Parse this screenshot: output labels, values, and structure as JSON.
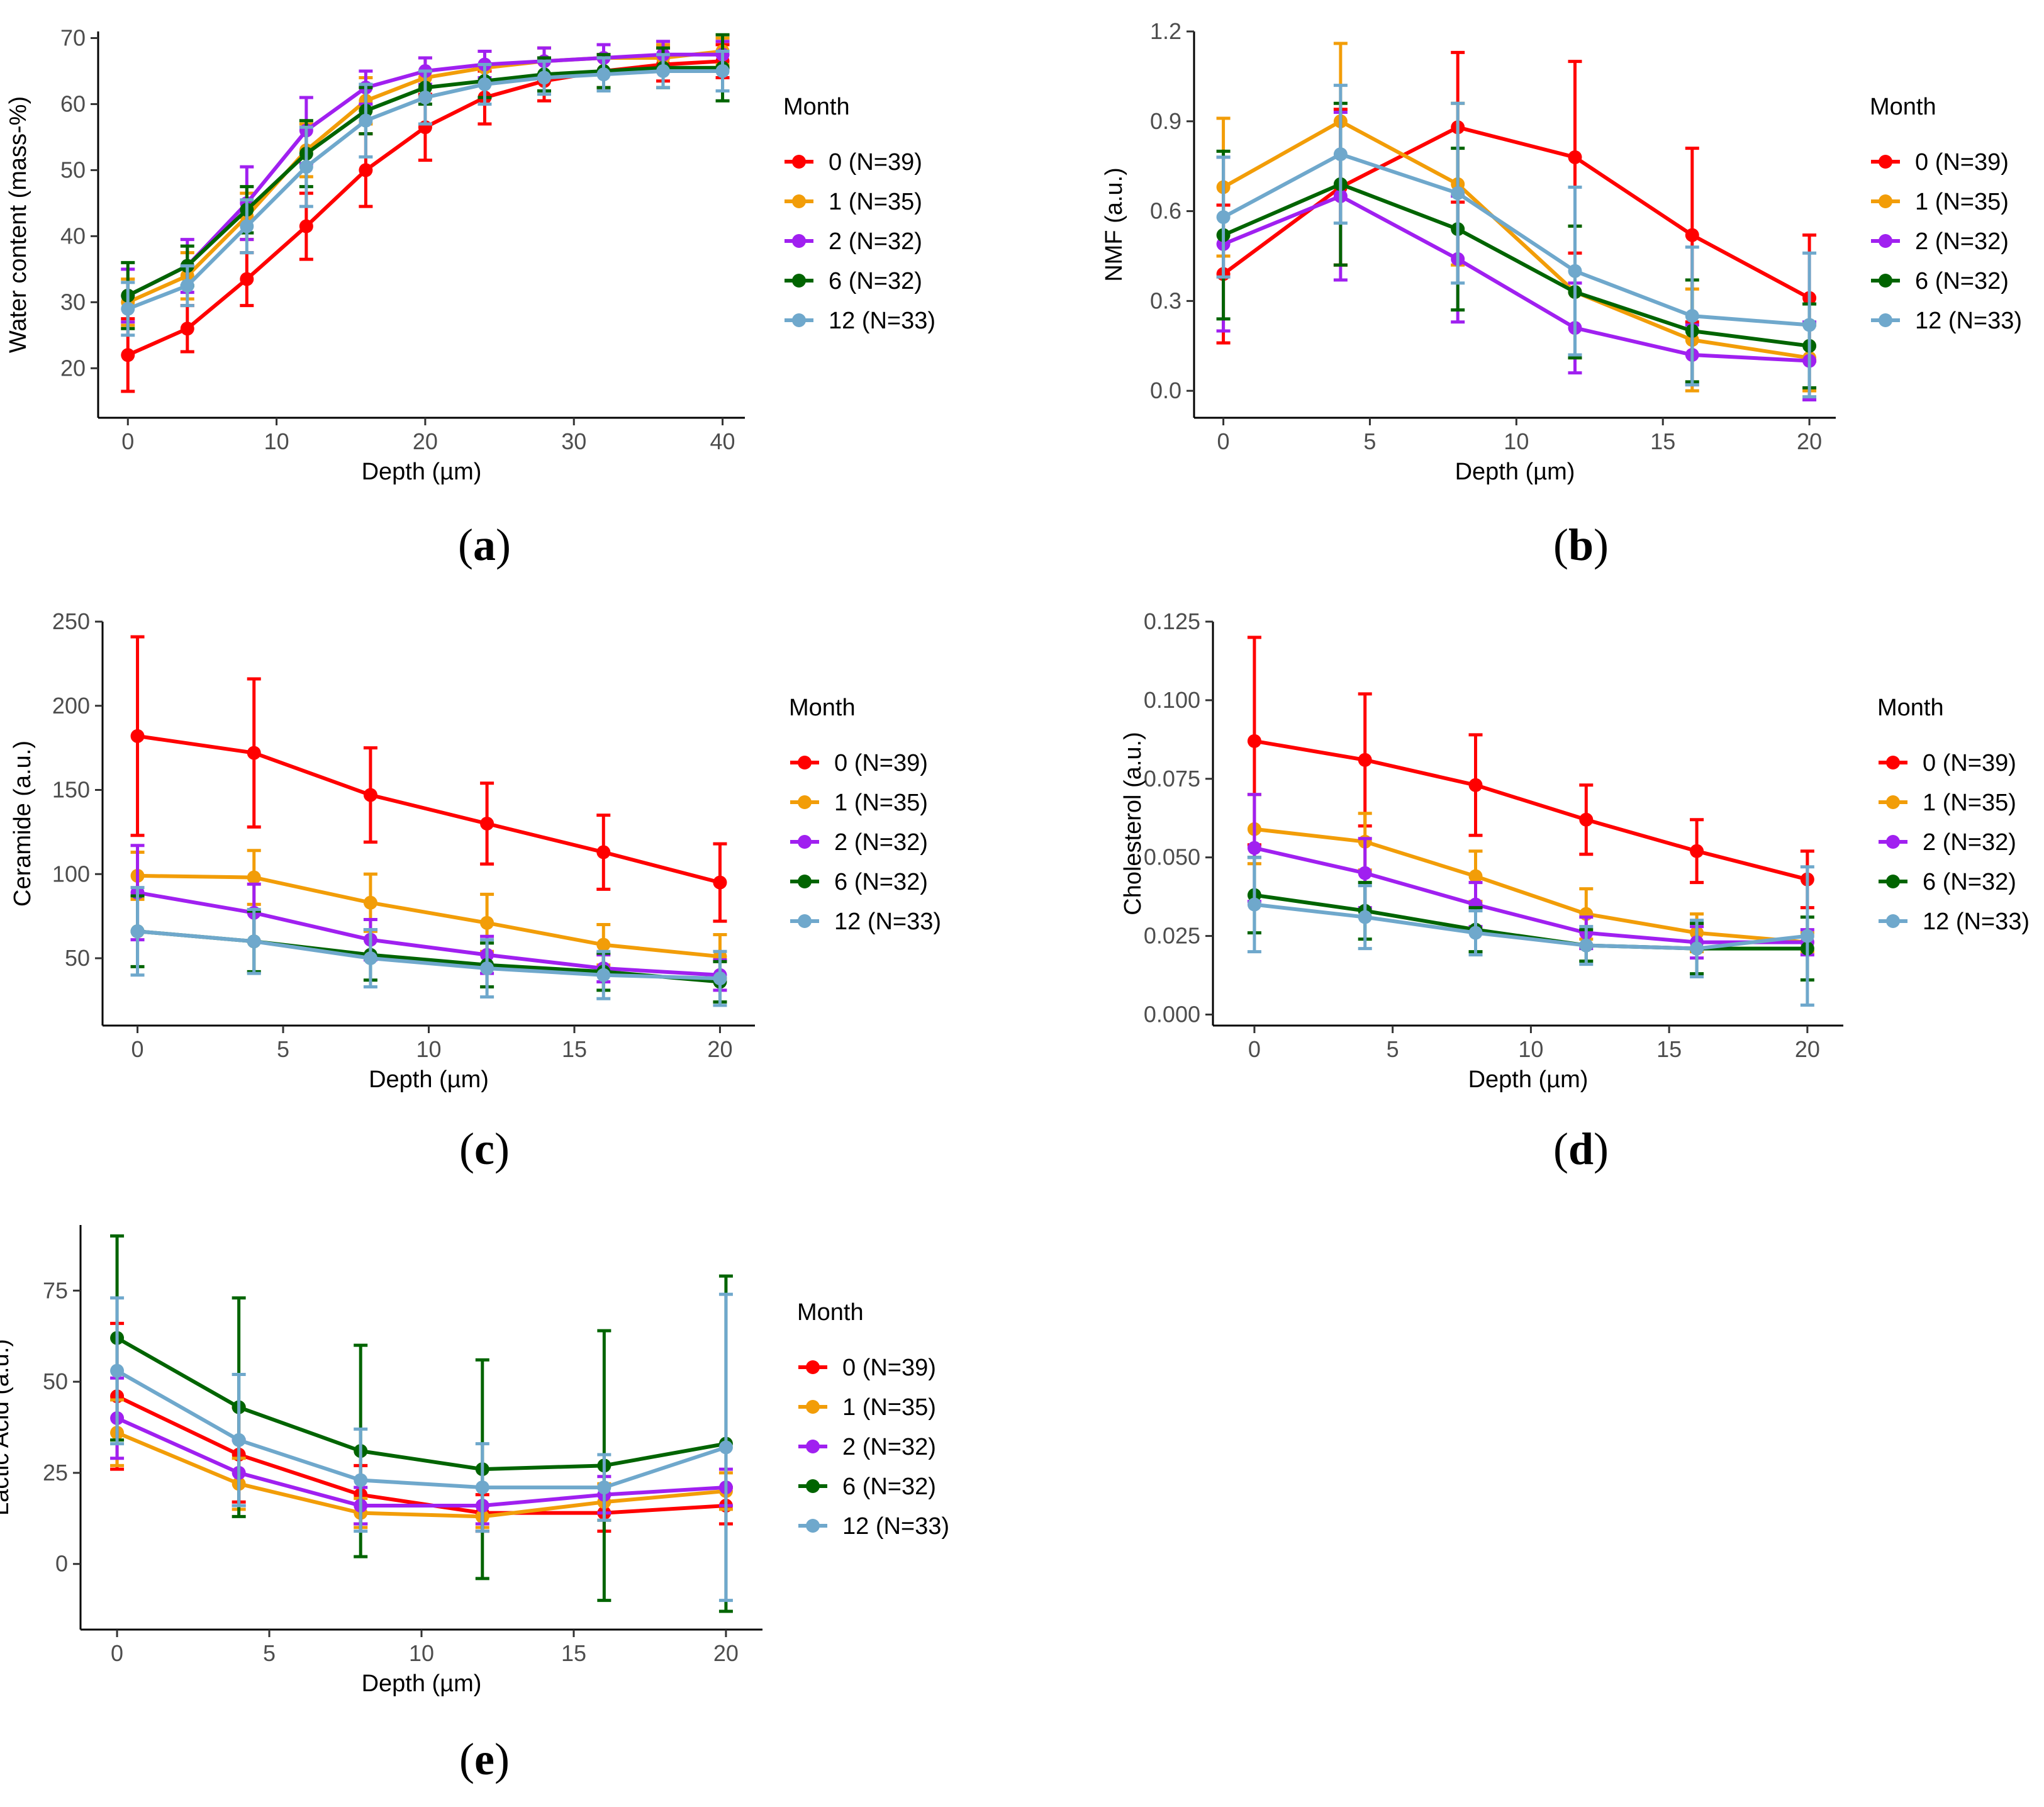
{
  "legend": {
    "title": "Month",
    "series": [
      {
        "name": "0 (N=39)",
        "color": "#ff0000"
      },
      {
        "name": "1 (N=35)",
        "color": "#f29d08"
      },
      {
        "name": "2 (N=32)",
        "color": "#a020f0"
      },
      {
        "name": "6 (N=32)",
        "color": "#006400"
      },
      {
        "name": "12 (N=33)",
        "color": "#6fa8cc"
      }
    ]
  },
  "chart_data": [
    {
      "type": "line",
      "panel_label": "a",
      "xlabel": "Depth (µm)",
      "ylabel": "Water content (mass-%)",
      "xlim": [
        -2,
        41.5
      ],
      "ylim": [
        12.5,
        71
      ],
      "xticks": [
        0,
        10,
        20,
        30,
        40
      ],
      "yticks": [
        20,
        30,
        40,
        50,
        60,
        70
      ],
      "x": [
        0,
        4,
        8,
        12,
        16,
        20,
        24,
        28,
        32,
        36,
        40
      ],
      "series": [
        {
          "name": "0 (N=39)",
          "values": [
            22,
            26,
            33.5,
            41.5,
            50,
            56.5,
            61,
            63.5,
            65,
            66,
            66.5
          ],
          "errors": [
            5.5,
            3.5,
            4,
            5,
            5.5,
            5,
            4,
            3,
            2.5,
            2.5,
            2.5
          ]
        },
        {
          "name": "1 (N=35)",
          "values": [
            30,
            34,
            43,
            53,
            60.5,
            64,
            65.5,
            66.5,
            67,
            67,
            68
          ],
          "errors": [
            3.5,
            3.5,
            3.5,
            4,
            3.5,
            3,
            2.5,
            2,
            2,
            2,
            2
          ]
        },
        {
          "name": "2 (N=32)",
          "values": [
            31,
            35.5,
            45,
            56,
            62.5,
            65,
            66,
            66.5,
            67,
            67.5,
            67.5
          ],
          "errors": [
            4,
            4,
            5.5,
            5,
            2.5,
            2,
            2,
            2,
            2,
            2,
            2
          ]
        },
        {
          "name": "6 (N=32)",
          "values": [
            31,
            35.5,
            44,
            52.5,
            59,
            62.5,
            63.5,
            64.5,
            65,
            65.5,
            65.5
          ],
          "errors": [
            5,
            3,
            3.5,
            5,
            3.5,
            2.5,
            2.5,
            2.5,
            2.5,
            3,
            5
          ]
        },
        {
          "name": "12 (N=33)",
          "values": [
            29,
            32.5,
            41.5,
            50.5,
            57.5,
            61,
            63,
            64,
            64.5,
            65,
            65
          ],
          "errors": [
            4,
            3,
            4,
            6,
            5.5,
            4,
            3,
            2.5,
            2.5,
            2.5,
            3
          ]
        }
      ]
    },
    {
      "type": "line",
      "panel_label": "b",
      "xlabel": "Depth (µm)",
      "ylabel": "NMF (a.u.)",
      "xlim": [
        -1,
        20.9
      ],
      "ylim": [
        -0.09,
        1.2
      ],
      "xticks": [
        0,
        5,
        10,
        15,
        20
      ],
      "yticks": [
        0.0,
        0.3,
        0.6,
        0.9,
        1.2
      ],
      "ytick_labels": [
        "0.0",
        "0.3",
        "0.6",
        "0.9",
        "1.2"
      ],
      "x": [
        0,
        4,
        8,
        12,
        16,
        20
      ],
      "series": [
        {
          "name": "0 (N=39)",
          "values": [
            0.39,
            0.68,
            0.88,
            0.78,
            0.52,
            0.31
          ],
          "errors": [
            0.23,
            0.26,
            0.25,
            0.32,
            0.29,
            0.21
          ]
        },
        {
          "name": "1 (N=35)",
          "values": [
            0.68,
            0.9,
            0.69,
            0.33,
            0.17,
            0.11
          ],
          "errors": [
            0.23,
            0.26,
            0.27,
            0.22,
            0.17,
            0.11
          ]
        },
        {
          "name": "2 (N=32)",
          "values": [
            0.49,
            0.65,
            0.44,
            0.21,
            0.12,
            0.1
          ],
          "errors": [
            0.29,
            0.28,
            0.21,
            0.15,
            0.1,
            0.13
          ]
        },
        {
          "name": "6 (N=32)",
          "values": [
            0.52,
            0.69,
            0.54,
            0.33,
            0.2,
            0.15
          ],
          "errors": [
            0.28,
            0.27,
            0.27,
            0.22,
            0.17,
            0.14
          ]
        },
        {
          "name": "12 (N=33)",
          "values": [
            0.58,
            0.79,
            0.66,
            0.4,
            0.25,
            0.22
          ],
          "errors": [
            0.2,
            0.23,
            0.3,
            0.28,
            0.23,
            0.24
          ]
        }
      ]
    },
    {
      "type": "line",
      "panel_label": "c",
      "xlabel": "Depth (µm)",
      "ylabel": "Ceramide (a.u.)",
      "xlim": [
        -1.2,
        21.2
      ],
      "ylim": [
        10,
        250
      ],
      "xticks": [
        0,
        5,
        10,
        15,
        20
      ],
      "yticks": [
        50,
        100,
        150,
        200,
        250
      ],
      "x": [
        0,
        4,
        8,
        12,
        16,
        20
      ],
      "series": [
        {
          "name": "0 (N=39)",
          "values": [
            182,
            172,
            147,
            130,
            113,
            95
          ],
          "errors": [
            59,
            44,
            28,
            24,
            22,
            23
          ]
        },
        {
          "name": "1 (N=35)",
          "values": [
            99,
            98,
            83,
            71,
            58,
            51
          ],
          "errors": [
            14,
            16,
            17,
            17,
            12,
            13
          ]
        },
        {
          "name": "2 (N=32)",
          "values": [
            89,
            77,
            61,
            52,
            44,
            40
          ],
          "errors": [
            28,
            17,
            12,
            11,
            8,
            9
          ]
        },
        {
          "name": "6 (N=32)",
          "values": [
            66,
            60,
            52,
            46,
            42,
            36
          ],
          "errors": [
            21,
            18,
            15,
            13,
            11,
            12
          ]
        },
        {
          "name": "12 (N=33)",
          "values": [
            66,
            60,
            50,
            44,
            40,
            38
          ],
          "errors": [
            26,
            19,
            17,
            17,
            14,
            16
          ]
        }
      ]
    },
    {
      "type": "line",
      "panel_label": "d",
      "xlabel": "Depth (µm)",
      "ylabel": "Cholesterol (a.u.)",
      "xlim": [
        -1.5,
        21.3
      ],
      "ylim": [
        -0.0035,
        0.125
      ],
      "xticks": [
        0,
        5,
        10,
        15,
        20
      ],
      "yticks": [
        0.0,
        0.025,
        0.05,
        0.075,
        0.1,
        0.125
      ],
      "ytick_labels": [
        "0.000",
        "0.025",
        "0.050",
        "0.075",
        "0.100",
        "0.125"
      ],
      "x": [
        0,
        4,
        8,
        12,
        16,
        20
      ],
      "series": [
        {
          "name": "0 (N=39)",
          "values": [
            0.087,
            0.081,
            0.073,
            0.062,
            0.052,
            0.043
          ],
          "errors": [
            0.033,
            0.021,
            0.016,
            0.011,
            0.01,
            0.009
          ]
        },
        {
          "name": "1 (N=35)",
          "values": [
            0.059,
            0.055,
            0.044,
            0.032,
            0.026,
            0.023
          ],
          "errors": [
            0.011,
            0.009,
            0.008,
            0.008,
            0.006,
            0.003
          ]
        },
        {
          "name": "2 (N=32)",
          "values": [
            0.053,
            0.045,
            0.035,
            0.026,
            0.023,
            0.023
          ],
          "errors": [
            0.017,
            0.011,
            0.007,
            0.005,
            0.005,
            0.004
          ]
        },
        {
          "name": "6 (N=32)",
          "values": [
            0.038,
            0.033,
            0.027,
            0.022,
            0.021,
            0.021
          ],
          "errors": [
            0.012,
            0.009,
            0.007,
            0.005,
            0.008,
            0.01
          ]
        },
        {
          "name": "12 (N=33)",
          "values": [
            0.035,
            0.031,
            0.026,
            0.022,
            0.021,
            0.025
          ],
          "errors": [
            0.015,
            0.01,
            0.007,
            0.006,
            0.009,
            0.022
          ]
        }
      ]
    },
    {
      "type": "line",
      "panel_label": "e",
      "xlabel": "Depth (µm)",
      "ylabel": "Lactic Acid (a.u.)",
      "xlim": [
        -1.2,
        21.2
      ],
      "ylim": [
        -18,
        93
      ],
      "xticks": [
        0,
        5,
        10,
        15,
        20
      ],
      "yticks": [
        0,
        25,
        50,
        75
      ],
      "x": [
        0,
        4,
        8,
        12,
        16,
        20
      ],
      "series": [
        {
          "name": "0 (N=39)",
          "values": [
            46,
            30,
            19,
            14,
            14,
            16
          ],
          "errors": [
            20,
            13,
            8,
            5,
            5,
            5
          ]
        },
        {
          "name": "1 (N=35)",
          "values": [
            36,
            22,
            14,
            13,
            17,
            20
          ],
          "errors": [
            9,
            7,
            4,
            3,
            5,
            5
          ]
        },
        {
          "name": "2 (N=32)",
          "values": [
            40,
            25,
            16,
            16,
            19,
            21
          ],
          "errors": [
            11,
            9,
            5,
            5,
            5,
            5
          ]
        },
        {
          "name": "6 (N=32)",
          "values": [
            62,
            43,
            31,
            26,
            27,
            33
          ],
          "errors": [
            28,
            30,
            29,
            30,
            37,
            46
          ]
        },
        {
          "name": "12 (N=33)",
          "values": [
            53,
            34,
            23,
            21,
            21,
            32
          ],
          "errors": [
            20,
            18,
            14,
            12,
            9,
            42
          ]
        }
      ]
    }
  ]
}
